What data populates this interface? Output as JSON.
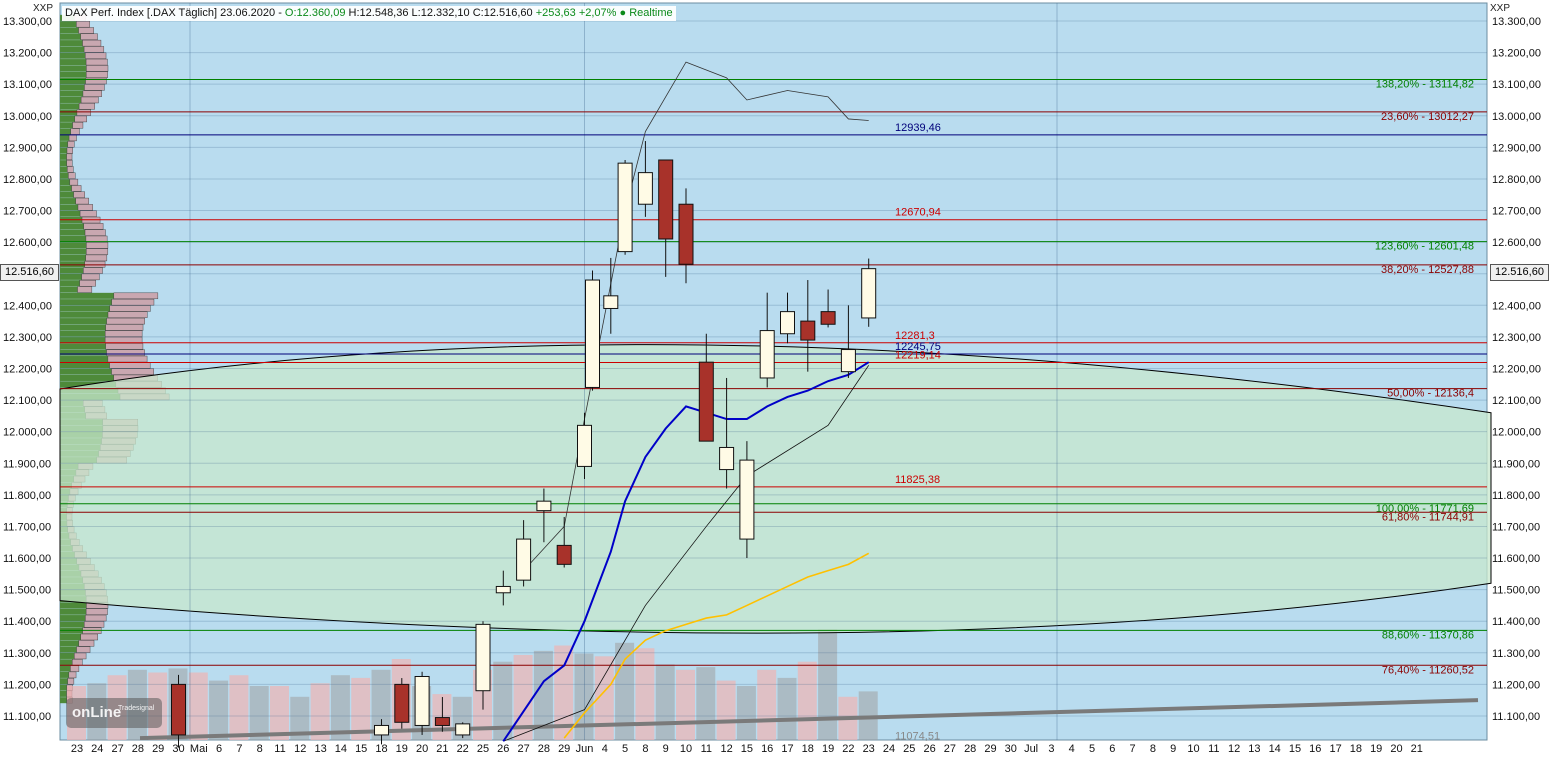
{
  "header": {
    "instrument": "DAX Perf. Index [.DAX Täglich] 23.06.2020 - ",
    "ohlc_open": "O:12.360,09",
    "ohlc_rest": " H:12.548,36 L:12.332,10 C:12.516,60 ",
    "change": "+253,63 +2,07%",
    "realtime": " ● Realtime"
  },
  "axis": {
    "left_title": "XXP",
    "right_title": "XXP",
    "current_price_label": "12.516,60"
  },
  "logo": {
    "text": "onLine",
    "small": "Tradesignal"
  },
  "colors": {
    "background": "#b9dcef",
    "up_candle": "#fffbe6",
    "down_candle": "#a8322a",
    "ma_fast": "#0000c8",
    "ma_slow": "#ffc000",
    "fib_green": "#008000",
    "fib_darkred": "#8b0000",
    "level_red": "#cc0000",
    "level_navy": "#00007a"
  },
  "chart_data": {
    "type": "candlestick",
    "title": "DAX Perf. Index [.DAX Täglich] 23.06.2020",
    "ylim": [
      11020,
      13340
    ],
    "y_ticks": [
      11100,
      11200,
      11300,
      11400,
      11500,
      11600,
      11700,
      11800,
      11900,
      12000,
      12100,
      12200,
      12300,
      12400,
      12500,
      12600,
      12700,
      12800,
      12900,
      13000,
      13100,
      13200,
      13300
    ],
    "y_tick_labels": [
      "11.100,00",
      "11.200,00",
      "11.300,00",
      "11.400,00",
      "11.500,00",
      "11.600,00",
      "11.700,00",
      "11.800,00",
      "11.900,00",
      "12.000,00",
      "12.100,00",
      "12.200,00",
      "12.300,00",
      "12.400,00",
      "12.500,00",
      "12.600,00",
      "12.700,00",
      "12.800,00",
      "12.900,00",
      "13.000,00",
      "13.100,00",
      "13.200,00",
      "13.300,00"
    ],
    "x_labels": [
      "23",
      "24",
      "27",
      "28",
      "29",
      "30",
      "Mai",
      "6",
      "7",
      "8",
      "11",
      "12",
      "13",
      "14",
      "15",
      "18",
      "19",
      "20",
      "21",
      "22",
      "25",
      "26",
      "27",
      "28",
      "29",
      "Jun",
      "4",
      "5",
      "8",
      "9",
      "10",
      "11",
      "12",
      "15",
      "16",
      "17",
      "18",
      "19",
      "22",
      "23",
      "24",
      "25",
      "26",
      "27",
      "28",
      "29",
      "30",
      "Jul",
      "3",
      "4",
      "5",
      "6",
      "7",
      "8",
      "9",
      "10",
      "11",
      "12",
      "13",
      "14",
      "15",
      "16",
      "17",
      "18",
      "19",
      "20",
      "21"
    ],
    "candles": [
      {
        "date": "27.04",
        "o": 11200,
        "h": 11230,
        "l": 11000,
        "c": 11040
      },
      {
        "date": "18.05",
        "o": 11040,
        "h": 11090,
        "l": 11010,
        "c": 11070
      },
      {
        "date": "19.05",
        "o": 11200,
        "h": 11220,
        "l": 11060,
        "c": 11080
      },
      {
        "date": "20.05",
        "o": 11070,
        "h": 11240,
        "l": 11040,
        "c": 11225
      },
      {
        "date": "21.05",
        "o": 11095,
        "h": 11160,
        "l": 11050,
        "c": 11070
      },
      {
        "date": "22.05",
        "o": 11040,
        "h": 11080,
        "l": 11030,
        "c": 11075
      },
      {
        "date": "25.05",
        "o": 11180,
        "h": 11400,
        "l": 11120,
        "c": 11390
      },
      {
        "date": "26.05",
        "o": 11490,
        "h": 11560,
        "l": 11450,
        "c": 11510
      },
      {
        "date": "27.05",
        "o": 11530,
        "h": 11720,
        "l": 11510,
        "c": 11660
      },
      {
        "date": "28.05",
        "o": 11750,
        "h": 11820,
        "l": 11650,
        "c": 11780
      },
      {
        "date": "29.05",
        "o": 11640,
        "h": 11730,
        "l": 11570,
        "c": 11580
      },
      {
        "date": "02.06",
        "o": 11890,
        "h": 12060,
        "l": 11850,
        "c": 12020
      },
      {
        "date": "03.06",
        "o": 12140,
        "h": 12510,
        "l": 12130,
        "c": 12480
      },
      {
        "date": "04.06",
        "o": 12390,
        "h": 12550,
        "l": 12310,
        "c": 12430
      },
      {
        "date": "05.06",
        "o": 12570,
        "h": 12860,
        "l": 12560,
        "c": 12850
      },
      {
        "date": "08.06",
        "o": 12720,
        "h": 12920,
        "l": 12680,
        "c": 12820
      },
      {
        "date": "09.06",
        "o": 12860,
        "h": 12860,
        "l": 12490,
        "c": 12610
      },
      {
        "date": "10.06",
        "o": 12720,
        "h": 12770,
        "l": 12470,
        "c": 12530
      },
      {
        "date": "11.06",
        "o": 12220,
        "h": 12310,
        "l": 11970,
        "c": 11970
      },
      {
        "date": "12.06",
        "o": 11880,
        "h": 12170,
        "l": 11820,
        "c": 11950
      },
      {
        "date": "15.06",
        "o": 11660,
        "h": 11970,
        "l": 11600,
        "c": 11910
      },
      {
        "date": "16.06",
        "o": 12170,
        "h": 12440,
        "l": 12140,
        "c": 12320
      },
      {
        "date": "17.06",
        "o": 12310,
        "h": 12440,
        "l": 12280,
        "c": 12380
      },
      {
        "date": "18.06",
        "o": 12350,
        "h": 12480,
        "l": 12190,
        "c": 12290
      },
      {
        "date": "19.06",
        "o": 12380,
        "h": 12450,
        "l": 12330,
        "c": 12340
      },
      {
        "date": "22.06",
        "o": 12190,
        "h": 12400,
        "l": 12170,
        "c": 12260
      },
      {
        "date": "23.06",
        "o": 12360,
        "h": 12548,
        "l": 12332,
        "c": 12516
      }
    ],
    "horizontal_levels": [
      {
        "value": 13114.82,
        "label": "138,20% - 13114,82",
        "color": "#008000"
      },
      {
        "value": 13012.27,
        "label": "23,60% - 13012,27",
        "color": "#8b0000"
      },
      {
        "value": 12939.46,
        "label": "12939,46",
        "color": "#00007a"
      },
      {
        "value": 12670.94,
        "label": "12670,94",
        "color": "#cc0000"
      },
      {
        "value": 12601.48,
        "label": "123,60% - 12601,48",
        "color": "#008000"
      },
      {
        "value": 12527.88,
        "label": "38,20% - 12527,88",
        "color": "#8b0000"
      },
      {
        "value": 12281.3,
        "label": "12281,3",
        "color": "#cc0000"
      },
      {
        "value": 12245.75,
        "label": "12245,75",
        "color": "#00007a"
      },
      {
        "value": 12219.14,
        "label": "12219,14",
        "color": "#cc0000"
      },
      {
        "value": 12136.4,
        "label": "50,00% - 12136,4",
        "color": "#8b0000"
      },
      {
        "value": 11825.38,
        "label": "11825,38",
        "color": "#cc0000"
      },
      {
        "value": 11771.69,
        "label": "100,00% - 11771,69",
        "color": "#008000"
      },
      {
        "value": 11744.91,
        "label": "61,80% - 11744,91",
        "color": "#8b0000"
      },
      {
        "value": 11370.86,
        "label": "88,60% - 11370,86",
        "color": "#008000"
      },
      {
        "value": 11260.52,
        "label": "76,40% - 11260,52",
        "color": "#8b0000"
      }
    ],
    "low_label": "11074,51",
    "ma_fast": [
      {
        "date": "26.05",
        "v": 11020
      },
      {
        "date": "28.05",
        "v": 11210
      },
      {
        "date": "29.05",
        "v": 11260
      },
      {
        "date": "02.06",
        "v": 11400
      },
      {
        "date": "04.06",
        "v": 11620
      },
      {
        "date": "05.06",
        "v": 11780
      },
      {
        "date": "08.06",
        "v": 11920
      },
      {
        "date": "09.06",
        "v": 12010
      },
      {
        "date": "10.06",
        "v": 12080
      },
      {
        "date": "11.06",
        "v": 12060
      },
      {
        "date": "12.06",
        "v": 12040
      },
      {
        "date": "15.06",
        "v": 12040
      },
      {
        "date": "16.06",
        "v": 12080
      },
      {
        "date": "17.06",
        "v": 12110
      },
      {
        "date": "18.06",
        "v": 12130
      },
      {
        "date": "19.06",
        "v": 12160
      },
      {
        "date": "22.06",
        "v": 12180
      },
      {
        "date": "23.06",
        "v": 12220
      }
    ],
    "ma_slow": [
      {
        "date": "29.05",
        "v": 11030
      },
      {
        "date": "02.06",
        "v": 11110
      },
      {
        "date": "04.06",
        "v": 11200
      },
      {
        "date": "05.06",
        "v": 11280
      },
      {
        "date": "08.06",
        "v": 11340
      },
      {
        "date": "09.06",
        "v": 11370
      },
      {
        "date": "10.06",
        "v": 11390
      },
      {
        "date": "11.06",
        "v": 11410
      },
      {
        "date": "12.06",
        "v": 11420
      },
      {
        "date": "15.06",
        "v": 11450
      },
      {
        "date": "16.06",
        "v": 11480
      },
      {
        "date": "17.06",
        "v": 11510
      },
      {
        "date": "18.06",
        "v": 11540
      },
      {
        "date": "19.06",
        "v": 11560
      },
      {
        "date": "22.06",
        "v": 11580
      },
      {
        "date": "23.06",
        "v": 11615
      }
    ],
    "volume_bars": [
      40,
      42,
      48,
      52,
      50,
      53,
      50,
      44,
      48,
      40,
      40,
      32,
      42,
      48,
      46,
      52,
      60,
      40,
      34,
      32,
      52,
      58,
      63,
      66,
      70,
      64,
      62,
      72,
      68,
      56,
      52,
      54,
      44,
      40,
      52,
      46,
      58,
      82,
      32,
      36
    ]
  }
}
